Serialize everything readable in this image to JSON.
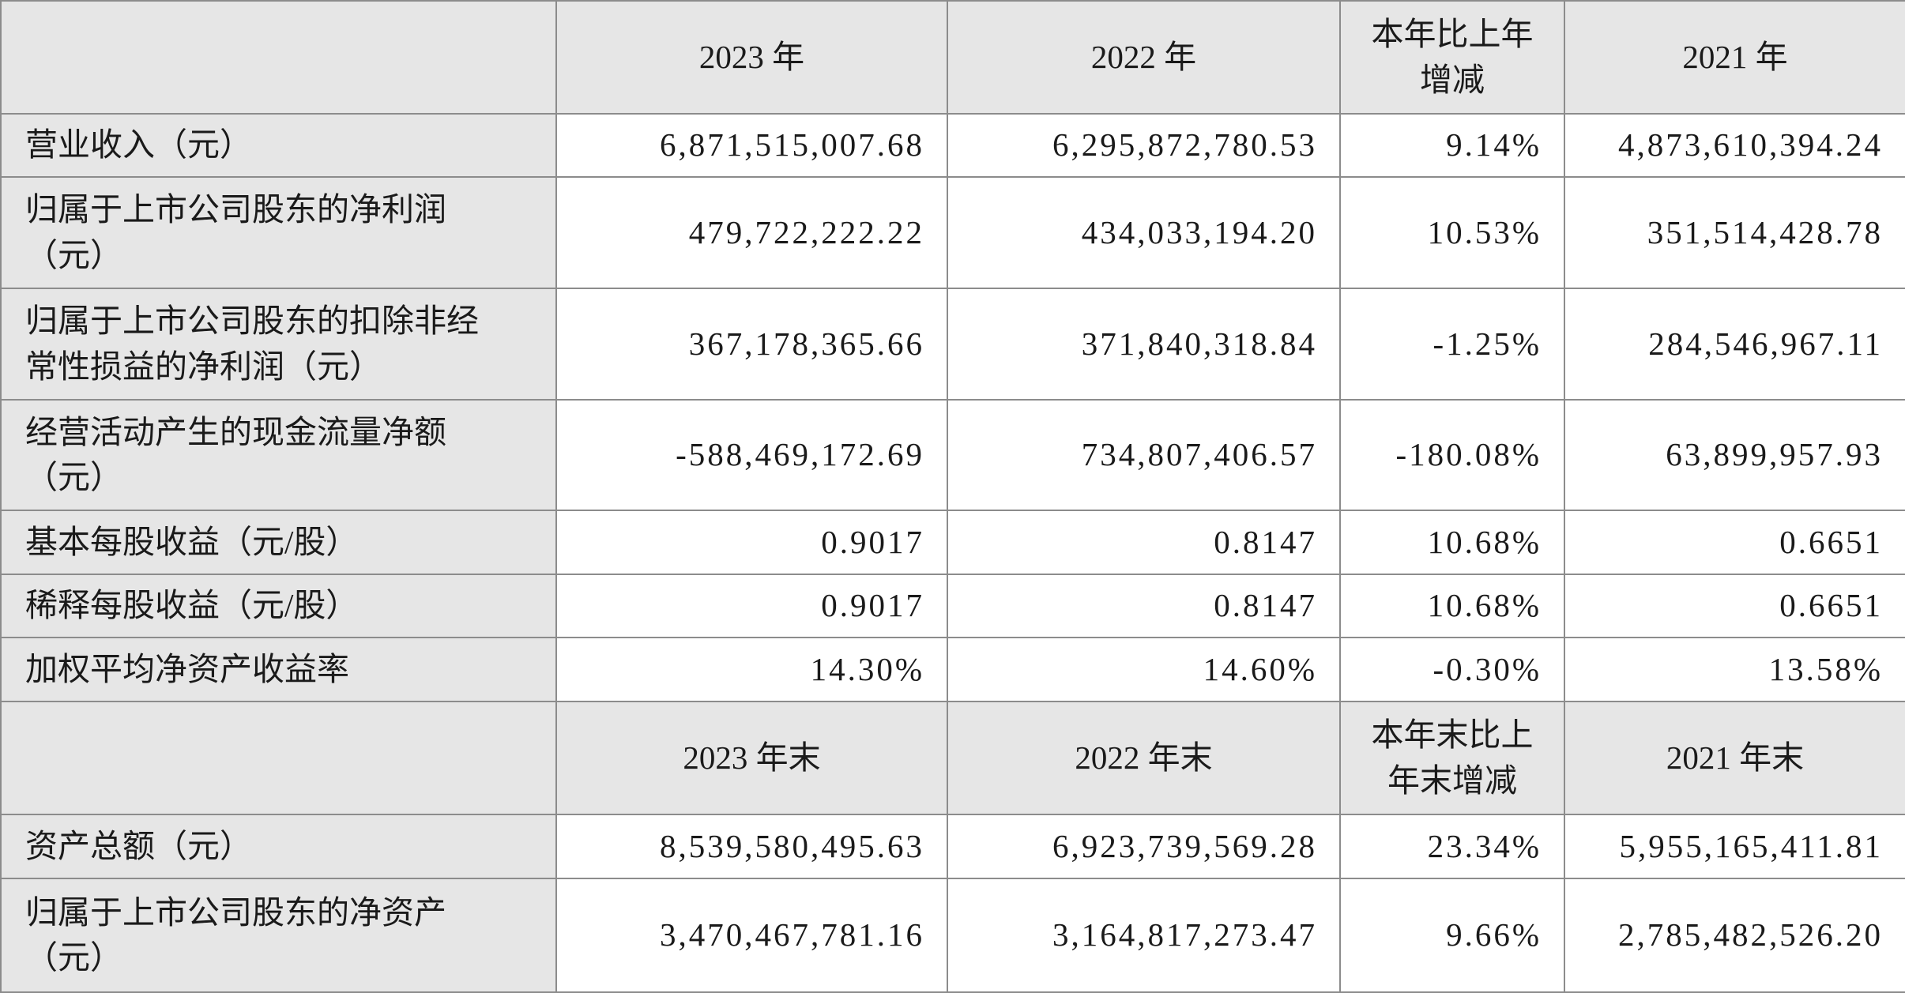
{
  "sections": [
    {
      "header": [
        "2023 年",
        "2022 年",
        "本年比上年增减",
        "2021 年"
      ],
      "rows": [
        [
          "营业收入（元）",
          "6,871,515,007.68",
          "6,295,872,780.53",
          "9.14%",
          "4,873,610,394.24"
        ],
        [
          "归属于上市公司股东的净利润（元）",
          "479,722,222.22",
          "434,033,194.20",
          "10.53%",
          "351,514,428.78"
        ],
        [
          "归属于上市公司股东的扣除非经常性损益的净利润（元）",
          "367,178,365.66",
          "371,840,318.84",
          "-1.25%",
          "284,546,967.11"
        ],
        [
          "经营活动产生的现金流量净额（元）",
          "-588,469,172.69",
          "734,807,406.57",
          "-180.08%",
          "63,899,957.93"
        ],
        [
          "基本每股收益（元/股）",
          "0.9017",
          "0.8147",
          "10.68%",
          "0.6651"
        ],
        [
          "稀释每股收益（元/股）",
          "0.9017",
          "0.8147",
          "10.68%",
          "0.6651"
        ],
        [
          "加权平均净资产收益率",
          "14.30%",
          "14.60%",
          "-0.30%",
          "13.58%"
        ]
      ]
    },
    {
      "header": [
        "2023 年末",
        "2022 年末",
        "本年末比上年末增减",
        "2021 年末"
      ],
      "rows": [
        [
          "资产总额（元）",
          "8,539,580,495.63",
          "6,923,739,569.28",
          "23.34%",
          "5,955,165,411.81"
        ],
        [
          "归属于上市公司股东的净资产（元）",
          "3,470,467,781.16",
          "3,164,817,273.47",
          "9.66%",
          "2,785,482,526.20"
        ]
      ]
    }
  ]
}
